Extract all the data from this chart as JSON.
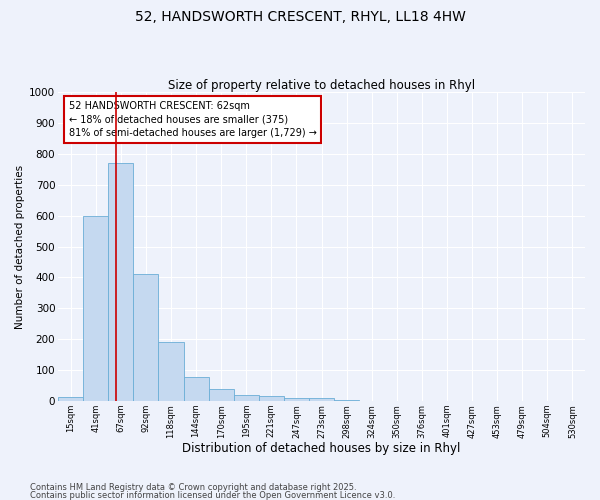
{
  "title_line1": "52, HANDSWORTH CRESCENT, RHYL, LL18 4HW",
  "title_line2": "Size of property relative to detached houses in Rhyl",
  "xlabel": "Distribution of detached houses by size in Rhyl",
  "ylabel": "Number of detached properties",
  "categories": [
    "15sqm",
    "41sqm",
    "67sqm",
    "92sqm",
    "118sqm",
    "144sqm",
    "170sqm",
    "195sqm",
    "221sqm",
    "247sqm",
    "273sqm",
    "298sqm",
    "324sqm",
    "350sqm",
    "376sqm",
    "401sqm",
    "427sqm",
    "453sqm",
    "479sqm",
    "504sqm",
    "530sqm"
  ],
  "values": [
    12,
    600,
    770,
    410,
    190,
    78,
    40,
    18,
    15,
    10,
    10,
    5,
    0,
    0,
    0,
    0,
    0,
    0,
    0,
    0,
    0
  ],
  "bar_color": "#c5d9f0",
  "bar_edge_color": "#6baed6",
  "annotation_text": "52 HANDSWORTH CRESCENT: 62sqm\n← 18% of detached houses are smaller (375)\n81% of semi-detached houses are larger (1,729) →",
  "annotation_box_color": "#ffffff",
  "annotation_box_edge": "#cc0000",
  "footer_line1": "Contains HM Land Registry data © Crown copyright and database right 2025.",
  "footer_line2": "Contains public sector information licensed under the Open Government Licence v3.0.",
  "ylim": [
    0,
    1000
  ],
  "background_color": "#eef2fb"
}
